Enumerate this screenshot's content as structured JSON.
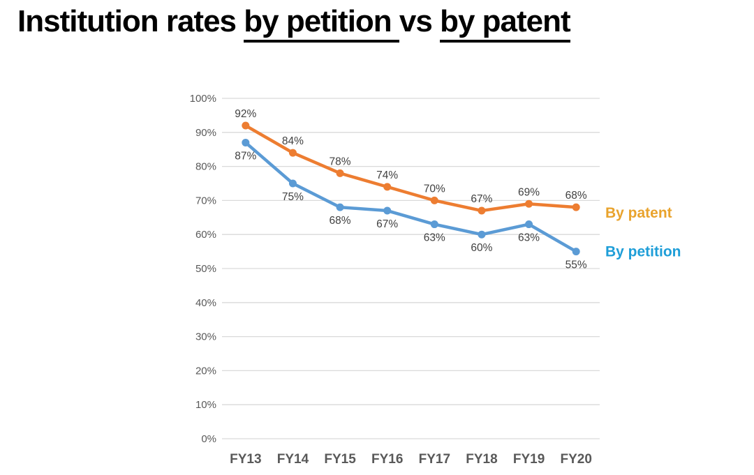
{
  "title": {
    "prefix": "Institution rates ",
    "underlined_1": "by petition ",
    "middle": "vs ",
    "underlined_2": "by patent"
  },
  "chart_data": {
    "type": "line",
    "title": "Institution rates by petition vs by patent",
    "categories": [
      "FY13",
      "FY14",
      "FY15",
      "FY16",
      "FY17",
      "FY18",
      "FY19",
      "FY20"
    ],
    "series": [
      {
        "name": "By patent",
        "values": [
          92,
          84,
          78,
          74,
          70,
          67,
          69,
          68
        ],
        "color": "#ED7D31",
        "legend_label_color": "#E9A32D",
        "data_label_position": "above"
      },
      {
        "name": "By petition",
        "values": [
          87,
          75,
          68,
          67,
          63,
          60,
          63,
          55
        ],
        "color": "#5B9BD5",
        "legend_label_color": "#1E9ED8",
        "data_label_position": "below"
      }
    ],
    "ylim": [
      0,
      100
    ],
    "ytick_step": 10,
    "ytick_suffix": "%",
    "data_label_suffix": "%",
    "grid": true,
    "legend_position": "right"
  },
  "colors": {
    "background": "#FFFFFF",
    "title_text": "#000000",
    "axis_label": "#595959",
    "data_label": "#404040",
    "gridline": "#D9D9D9"
  }
}
